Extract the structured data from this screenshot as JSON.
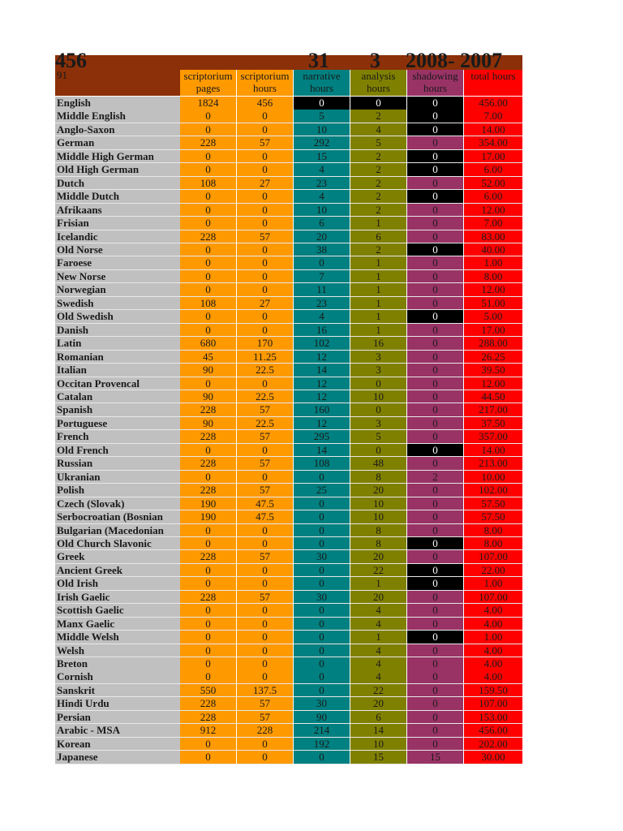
{
  "header": {
    "big_total": "456",
    "big_narrative": "31",
    "big_analysis": "3",
    "big_years": "2008- 2007",
    "small_count": "91"
  },
  "columns": {
    "pages": "scriptorium pages",
    "scr_hours": "scriptorium hours",
    "narrative": "narrative hours",
    "analysis": "analysis hours",
    "shadowing": "shadowing hours",
    "total": "total hours"
  },
  "rows": [
    {
      "name": "English",
      "pages": "1824",
      "scr": "456",
      "narr": "0",
      "ana": "0",
      "shad": "0",
      "total": "456.00",
      "narr_black": true,
      "ana_black": true,
      "shad_black": true
    },
    {
      "name": "Middle English",
      "pages": "0",
      "scr": "0",
      "narr": "5",
      "ana": "2",
      "shad": "0",
      "total": "7.00",
      "shad_black": true
    },
    {
      "name": "Anglo-Saxon",
      "pages": "0",
      "scr": "0",
      "narr": "10",
      "ana": "4",
      "shad": "0",
      "total": "14.00",
      "shad_black": true
    },
    {
      "name": "German",
      "pages": "228",
      "scr": "57",
      "narr": "292",
      "ana": "5",
      "shad": "0",
      "total": "354.00"
    },
    {
      "name": "Middle High German",
      "pages": "0",
      "scr": "0",
      "narr": "15",
      "ana": "2",
      "shad": "0",
      "total": "17.00",
      "shad_black": true
    },
    {
      "name": "Old High German",
      "pages": "0",
      "scr": "0",
      "narr": "4",
      "ana": "2",
      "shad": "0",
      "total": "6.00",
      "shad_black": true
    },
    {
      "name": "Dutch",
      "pages": "108",
      "scr": "27",
      "narr": "23",
      "ana": "2",
      "shad": "0",
      "total": "52.00"
    },
    {
      "name": "Middle Dutch",
      "pages": "0",
      "scr": "0",
      "narr": "4",
      "ana": "2",
      "shad": "0",
      "total": "6.00",
      "shad_black": true
    },
    {
      "name": "Afrikaans",
      "pages": "0",
      "scr": "0",
      "narr": "10",
      "ana": "2",
      "shad": "0",
      "total": "12.00"
    },
    {
      "name": "Frisian",
      "pages": "0",
      "scr": "0",
      "narr": "6",
      "ana": "1",
      "shad": "0",
      "total": "7.00"
    },
    {
      "name": "Icelandic",
      "pages": "228",
      "scr": "57",
      "narr": "20",
      "ana": "6",
      "shad": "0",
      "total": "83.00"
    },
    {
      "name": "Old Norse",
      "pages": "0",
      "scr": "0",
      "narr": "38",
      "ana": "2",
      "shad": "0",
      "total": "40.00",
      "shad_black": true
    },
    {
      "name": "Faroese",
      "pages": "0",
      "scr": "0",
      "narr": "0",
      "ana": "1",
      "shad": "0",
      "total": "1.00"
    },
    {
      "name": "New Norse",
      "pages": "0",
      "scr": "0",
      "narr": "7",
      "ana": "1",
      "shad": "0",
      "total": "8.00"
    },
    {
      "name": "Norwegian",
      "pages": "0",
      "scr": "0",
      "narr": "11",
      "ana": "1",
      "shad": "0",
      "total": "12.00"
    },
    {
      "name": "Swedish",
      "pages": "108",
      "scr": "27",
      "narr": "23",
      "ana": "1",
      "shad": "0",
      "total": "51.00"
    },
    {
      "name": "Old Swedish",
      "pages": "0",
      "scr": "0",
      "narr": "4",
      "ana": "1",
      "shad": "0",
      "total": "5.00",
      "shad_black": true
    },
    {
      "name": "Danish",
      "pages": "0",
      "scr": "0",
      "narr": "16",
      "ana": "1",
      "shad": "0",
      "total": "17.00"
    },
    {
      "name": "Latin",
      "pages": "680",
      "scr": "170",
      "narr": "102",
      "ana": "16",
      "shad": "0",
      "total": "288.00"
    },
    {
      "name": "Romanian",
      "pages": "45",
      "scr": "11.25",
      "narr": "12",
      "ana": "3",
      "shad": "0",
      "total": "26.25"
    },
    {
      "name": "Italian",
      "pages": "90",
      "scr": "22.5",
      "narr": "14",
      "ana": "3",
      "shad": "0",
      "total": "39.50"
    },
    {
      "name": "Occitan Provencal",
      "pages": "0",
      "scr": "0",
      "narr": "12",
      "ana": "0",
      "shad": "0",
      "total": "12.00"
    },
    {
      "name": "Catalan",
      "pages": "90",
      "scr": "22.5",
      "narr": "12",
      "ana": "10",
      "shad": "0",
      "total": "44.50"
    },
    {
      "name": "Spanish",
      "pages": "228",
      "scr": "57",
      "narr": "160",
      "ana": "0",
      "shad": "0",
      "total": "217.00"
    },
    {
      "name": "Portuguese",
      "pages": "90",
      "scr": "22.5",
      "narr": "12",
      "ana": "3",
      "shad": "0",
      "total": "37.50"
    },
    {
      "name": "French",
      "pages": "228",
      "scr": "57",
      "narr": "295",
      "ana": "5",
      "shad": "0",
      "total": "357.00"
    },
    {
      "name": "Old French",
      "pages": "0",
      "scr": "0",
      "narr": "14",
      "ana": "0",
      "shad": "0",
      "total": "14.00",
      "shad_black": true
    },
    {
      "name": "Russian",
      "pages": "228",
      "scr": "57",
      "narr": "108",
      "ana": "48",
      "shad": "0",
      "total": "213.00"
    },
    {
      "name": "Ukranian",
      "pages": "0",
      "scr": "0",
      "narr": "0",
      "ana": "8",
      "shad": "2",
      "total": "10.00"
    },
    {
      "name": "Polish",
      "pages": "228",
      "scr": "57",
      "narr": "25",
      "ana": "20",
      "shad": "0",
      "total": "102.00"
    },
    {
      "name": "Czech (Slovak)",
      "pages": "190",
      "scr": "47.5",
      "narr": "0",
      "ana": "10",
      "shad": "0",
      "total": "57.50"
    },
    {
      "name": "Serbocroatian (Bosnian",
      "pages": "190",
      "scr": "47.5",
      "narr": "0",
      "ana": "10",
      "shad": "0",
      "total": "57.50"
    },
    {
      "name": "Bulgarian (Macedonian",
      "pages": "0",
      "scr": "0",
      "narr": "0",
      "ana": "8",
      "shad": "0",
      "total": "8.00"
    },
    {
      "name": "Old Church Slavonic",
      "pages": "0",
      "scr": "0",
      "narr": "0",
      "ana": "8",
      "shad": "0",
      "total": "8.00",
      "shad_black": true
    },
    {
      "name": "Greek",
      "pages": "228",
      "scr": "57",
      "narr": "30",
      "ana": "20",
      "shad": "0",
      "total": "107.00"
    },
    {
      "name": "Ancient Greek",
      "pages": "0",
      "scr": "0",
      "narr": "0",
      "ana": "22",
      "shad": "0",
      "total": "22.00",
      "shad_black": true
    },
    {
      "name": "Old Irish",
      "pages": "0",
      "scr": "0",
      "narr": "0",
      "ana": "1",
      "shad": "0",
      "total": "1.00",
      "shad_black": true
    },
    {
      "name": "Irish Gaelic",
      "pages": "228",
      "scr": "57",
      "narr": "30",
      "ana": "20",
      "shad": "0",
      "total": "107.00"
    },
    {
      "name": "Scottish Gaelic",
      "pages": "0",
      "scr": "0",
      "narr": "0",
      "ana": "4",
      "shad": "0",
      "total": "4.00"
    },
    {
      "name": "Manx Gaelic",
      "pages": "0",
      "scr": "0",
      "narr": "0",
      "ana": "4",
      "shad": "0",
      "total": "4.00"
    },
    {
      "name": "Middle Welsh",
      "pages": "0",
      "scr": "0",
      "narr": "0",
      "ana": "1",
      "shad": "0",
      "total": "1.00",
      "shad_black": true
    },
    {
      "name": "Welsh",
      "pages": "0",
      "scr": "0",
      "narr": "0",
      "ana": "4",
      "shad": "0",
      "total": "4.00"
    },
    {
      "name": "Breton",
      "pages": "0",
      "scr": "0",
      "narr": "0",
      "ana": "4",
      "shad": "0",
      "total": "4.00"
    },
    {
      "name": "Cornish",
      "pages": "0",
      "scr": "0",
      "narr": "0",
      "ana": "4",
      "shad": "0",
      "total": "4.00"
    },
    {
      "name": "Sanskrit",
      "pages": "550",
      "scr": "137.5",
      "narr": "0",
      "ana": "22",
      "shad": "0",
      "total": "159.50"
    },
    {
      "name": "Hindi Urdu",
      "pages": "228",
      "scr": "57",
      "narr": "30",
      "ana": "20",
      "shad": "0",
      "total": "107.00"
    },
    {
      "name": "Persian",
      "pages": "228",
      "scr": "57",
      "narr": "90",
      "ana": "6",
      "shad": "0",
      "total": "153.00"
    },
    {
      "name": "Arabic - MSA",
      "pages": "912",
      "scr": "228",
      "narr": "214",
      "ana": "14",
      "shad": "0",
      "total": "456.00"
    },
    {
      "name": "Korean",
      "pages": "0",
      "scr": "0",
      "narr": "192",
      "ana": "10",
      "shad": "0",
      "total": "202.00"
    },
    {
      "name": "Japanese",
      "pages": "0",
      "scr": "0",
      "narr": "0",
      "ana": "15",
      "shad": "15",
      "total": "30.00"
    }
  ],
  "colors": {
    "header_brown": "#8b3008",
    "name_gray": "#c0c0c0",
    "scriptorium_orange": "#ff9900",
    "narrative_teal": "#008080",
    "analysis_olive": "#808000",
    "shadowing_plum": "#993366",
    "total_red": "#ff0000",
    "highlight_black": "#000000"
  }
}
